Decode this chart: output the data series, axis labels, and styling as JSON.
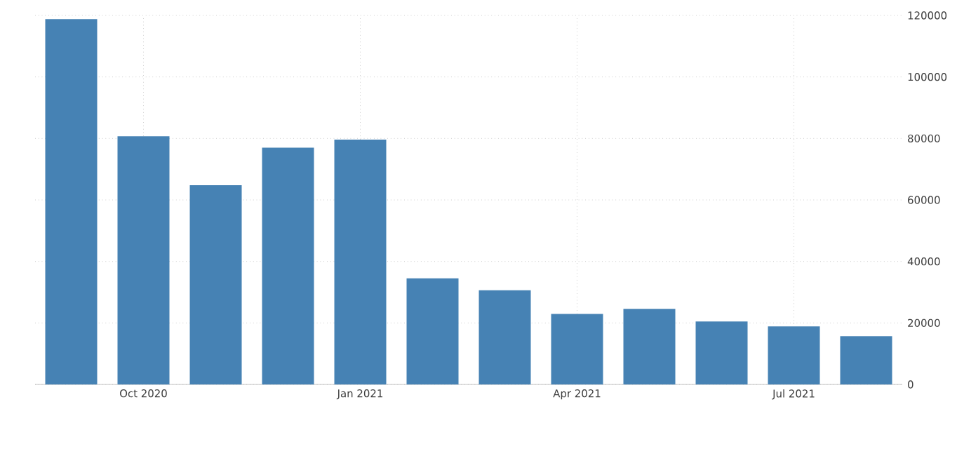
{
  "chart_data": {
    "type": "bar",
    "categories": [
      null,
      "Oct 2020",
      null,
      null,
      "Jan 2021",
      null,
      null,
      "Apr 2021",
      null,
      null,
      "Jul 2021",
      null
    ],
    "values": [
      118800,
      80700,
      64800,
      77000,
      79600,
      34500,
      30600,
      22900,
      24600,
      20500,
      18900,
      15700
    ],
    "color": "#4682b4",
    "ylim": [
      0,
      120000
    ],
    "yticks": [
      0,
      20000,
      40000,
      60000,
      80000,
      100000,
      120000
    ],
    "grid": true
  }
}
